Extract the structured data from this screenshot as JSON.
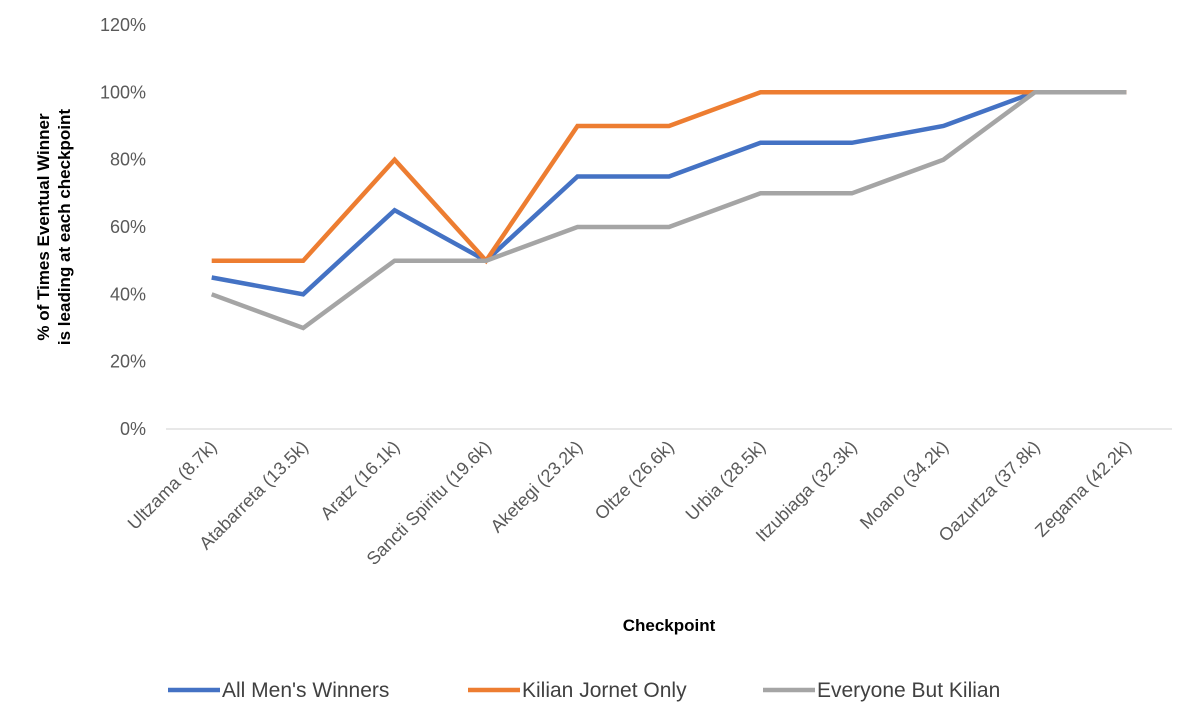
{
  "chart_data": {
    "type": "line",
    "title": "",
    "xlabel": "Checkpoint",
    "ylabel": [
      "% of Times Eventual Winner",
      "is leading at each checkpoint"
    ],
    "ylim": [
      0,
      120
    ],
    "yticks": [
      0,
      20,
      40,
      60,
      80,
      100,
      120
    ],
    "ytick_format": "percent",
    "grid": false,
    "legend_position": "bottom",
    "categories": [
      "Ultzama (8.7k)",
      "Atabarreta (13.5k)",
      "Aratz (16.1k)",
      "Sancti Spiritu (19.6k)",
      "Aketegi (23.2k)",
      "Oltze (26.6k)",
      "Urbia (28.5k)",
      "Itzubiaga (32.3k)",
      "Moano (34.2k)",
      "Oazurtza (37.8k)",
      "Zegama (42.2k)"
    ],
    "series": [
      {
        "name": "All Men's Winners",
        "color": "#4472C4",
        "values": [
          45,
          40,
          65,
          50,
          75,
          75,
          85,
          85,
          90,
          100,
          100
        ]
      },
      {
        "name": "Kilian Jornet Only",
        "color": "#ED7D31",
        "values": [
          50,
          50,
          80,
          50,
          90,
          90,
          100,
          100,
          100,
          100,
          100
        ]
      },
      {
        "name": "Everyone But Kilian",
        "color": "#A5A5A5",
        "values": [
          40,
          30,
          50,
          50,
          60,
          60,
          70,
          70,
          80,
          100,
          100
        ]
      }
    ]
  }
}
